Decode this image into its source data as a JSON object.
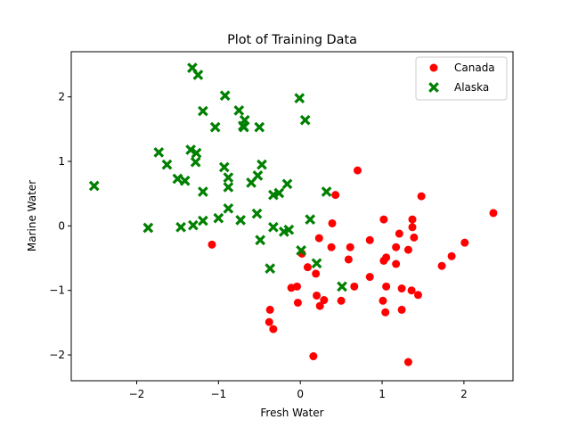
{
  "chart_data": {
    "type": "scatter",
    "title": "Plot of Training Data",
    "xlabel": "Fresh Water",
    "ylabel": "Marine Water",
    "xlim": [
      -2.8,
      2.6
    ],
    "ylim": [
      -2.4,
      2.7
    ],
    "xticks": [
      -2,
      -1,
      0,
      1,
      2
    ],
    "yticks": [
      -2,
      -1,
      0,
      1,
      2
    ],
    "grid": false,
    "legend_position": "top-right",
    "series": [
      {
        "name": "Canada",
        "color": "#ff0000",
        "marker": "circle",
        "points": [
          [
            0.7,
            0.86
          ],
          [
            2.36,
            0.2
          ],
          [
            1.48,
            0.46
          ],
          [
            0.43,
            0.48
          ],
          [
            1.02,
            0.1
          ],
          [
            1.37,
            0.1
          ],
          [
            0.39,
            0.04
          ],
          [
            1.37,
            -0.02
          ],
          [
            -1.08,
            -0.29
          ],
          [
            1.21,
            -0.12
          ],
          [
            0.23,
            -0.19
          ],
          [
            1.39,
            -0.18
          ],
          [
            2.01,
            -0.26
          ],
          [
            0.85,
            -0.22
          ],
          [
            0.38,
            -0.33
          ],
          [
            0.61,
            -0.33
          ],
          [
            1.17,
            -0.33
          ],
          [
            1.32,
            -0.37
          ],
          [
            0.02,
            -0.43
          ],
          [
            1.05,
            -0.49
          ],
          [
            0.59,
            -0.52
          ],
          [
            1.02,
            -0.54
          ],
          [
            1.85,
            -0.47
          ],
          [
            1.73,
            -0.62
          ],
          [
            1.17,
            -0.59
          ],
          [
            0.09,
            -0.64
          ],
          [
            0.19,
            -0.74
          ],
          [
            0.85,
            -0.79
          ],
          [
            -0.11,
            -0.96
          ],
          [
            -0.04,
            -0.94
          ],
          [
            0.66,
            -0.94
          ],
          [
            1.05,
            -0.94
          ],
          [
            1.24,
            -0.97
          ],
          [
            1.36,
            -1.0
          ],
          [
            1.44,
            -1.07
          ],
          [
            0.2,
            -1.08
          ],
          [
            0.29,
            -1.15
          ],
          [
            0.5,
            -1.16
          ],
          [
            -0.03,
            -1.19
          ],
          [
            0.24,
            -1.24
          ],
          [
            1.01,
            -1.16
          ],
          [
            -0.37,
            -1.3
          ],
          [
            1.24,
            -1.3
          ],
          [
            1.04,
            -1.34
          ],
          [
            -0.38,
            -1.49
          ],
          [
            -0.33,
            -1.6
          ],
          [
            0.16,
            -2.02
          ],
          [
            1.32,
            -2.11
          ]
        ]
      },
      {
        "name": "Alaska",
        "color": "#008000",
        "marker": "x",
        "points": [
          [
            -1.32,
            2.45
          ],
          [
            -1.25,
            2.34
          ],
          [
            -0.92,
            2.02
          ],
          [
            -0.01,
            1.98
          ],
          [
            -0.75,
            1.79
          ],
          [
            -1.19,
            1.78
          ],
          [
            -0.68,
            1.64
          ],
          [
            0.06,
            1.64
          ],
          [
            -0.7,
            1.55
          ],
          [
            -1.04,
            1.53
          ],
          [
            -0.69,
            1.53
          ],
          [
            -0.5,
            1.53
          ],
          [
            -1.73,
            1.14
          ],
          [
            -1.34,
            1.18
          ],
          [
            -1.27,
            1.13
          ],
          [
            -1.28,
            0.99
          ],
          [
            -1.63,
            0.95
          ],
          [
            -0.93,
            0.91
          ],
          [
            -0.47,
            0.95
          ],
          [
            -1.5,
            0.73
          ],
          [
            -0.88,
            0.75
          ],
          [
            -0.52,
            0.78
          ],
          [
            -1.41,
            0.7
          ],
          [
            -0.6,
            0.67
          ],
          [
            -0.16,
            0.65
          ],
          [
            -2.52,
            0.62
          ],
          [
            -0.88,
            0.6
          ],
          [
            -1.19,
            0.53
          ],
          [
            0.32,
            0.53
          ],
          [
            -0.33,
            0.48
          ],
          [
            -0.26,
            0.51
          ],
          [
            -0.88,
            0.27
          ],
          [
            -0.53,
            0.19
          ],
          [
            -1.0,
            0.12
          ],
          [
            -1.19,
            0.08
          ],
          [
            -0.73,
            0.09
          ],
          [
            0.12,
            0.1
          ],
          [
            -1.86,
            -0.03
          ],
          [
            -1.46,
            -0.02
          ],
          [
            -1.31,
            0.01
          ],
          [
            -0.33,
            -0.02
          ],
          [
            -0.2,
            -0.09
          ],
          [
            -0.14,
            -0.06
          ],
          [
            -0.49,
            -0.22
          ],
          [
            0.01,
            -0.38
          ],
          [
            0.2,
            -0.58
          ],
          [
            -0.37,
            -0.66
          ],
          [
            0.51,
            -0.94
          ]
        ]
      }
    ]
  }
}
